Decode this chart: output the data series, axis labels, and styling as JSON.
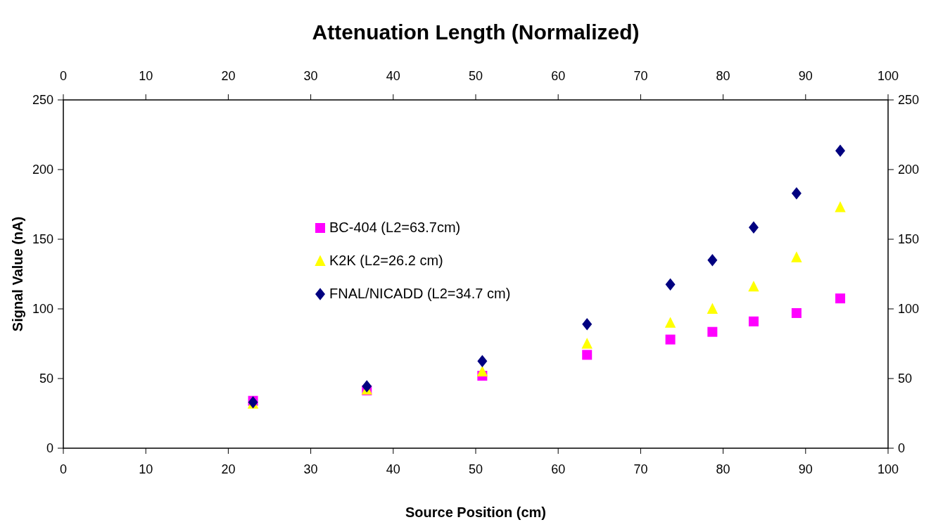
{
  "chart_data": {
    "type": "scatter",
    "title": "Attenuation Length (Normalized)",
    "xlabel": "Source Position (cm)",
    "ylabel": "Signal Value (nA)",
    "x": [
      23.0,
      36.8,
      50.8,
      63.5,
      73.6,
      78.7,
      83.7,
      88.9,
      94.2
    ],
    "series": [
      {
        "name": "BC-404 (L2=63.7cm)",
        "color": "#ff00ff",
        "marker": "square",
        "values": [
          34,
          41.5,
          52,
          67,
          78,
          83.5,
          91,
          97,
          107.5
        ]
      },
      {
        "name": "K2K (L2=26.2 cm)",
        "color": "#ffff00",
        "marker": "triangle",
        "values": [
          32,
          42,
          55,
          75,
          90,
          100,
          116,
          137,
          173
        ]
      },
      {
        "name": "FNAL/NICADD (L2=34.7 cm)",
        "color": "#000080",
        "marker": "diamond",
        "values": [
          33,
          44.5,
          62.5,
          89,
          117.5,
          135,
          158.5,
          183,
          213.5
        ]
      }
    ],
    "xlim": [
      0,
      100
    ],
    "xticks": [
      0,
      10,
      20,
      30,
      40,
      50,
      60,
      70,
      80,
      90,
      100
    ],
    "x2lim": [
      0,
      100
    ],
    "x2ticks": [
      0,
      10,
      20,
      30,
      40,
      50,
      60,
      70,
      80,
      90,
      100
    ],
    "ylim": [
      0,
      250
    ],
    "yticks": [
      0,
      50,
      100,
      150,
      200,
      250
    ],
    "y2lim": [
      0,
      250
    ],
    "y2ticks": [
      0,
      50,
      100,
      150,
      200,
      250
    ],
    "legend": "left",
    "grid": false
  }
}
